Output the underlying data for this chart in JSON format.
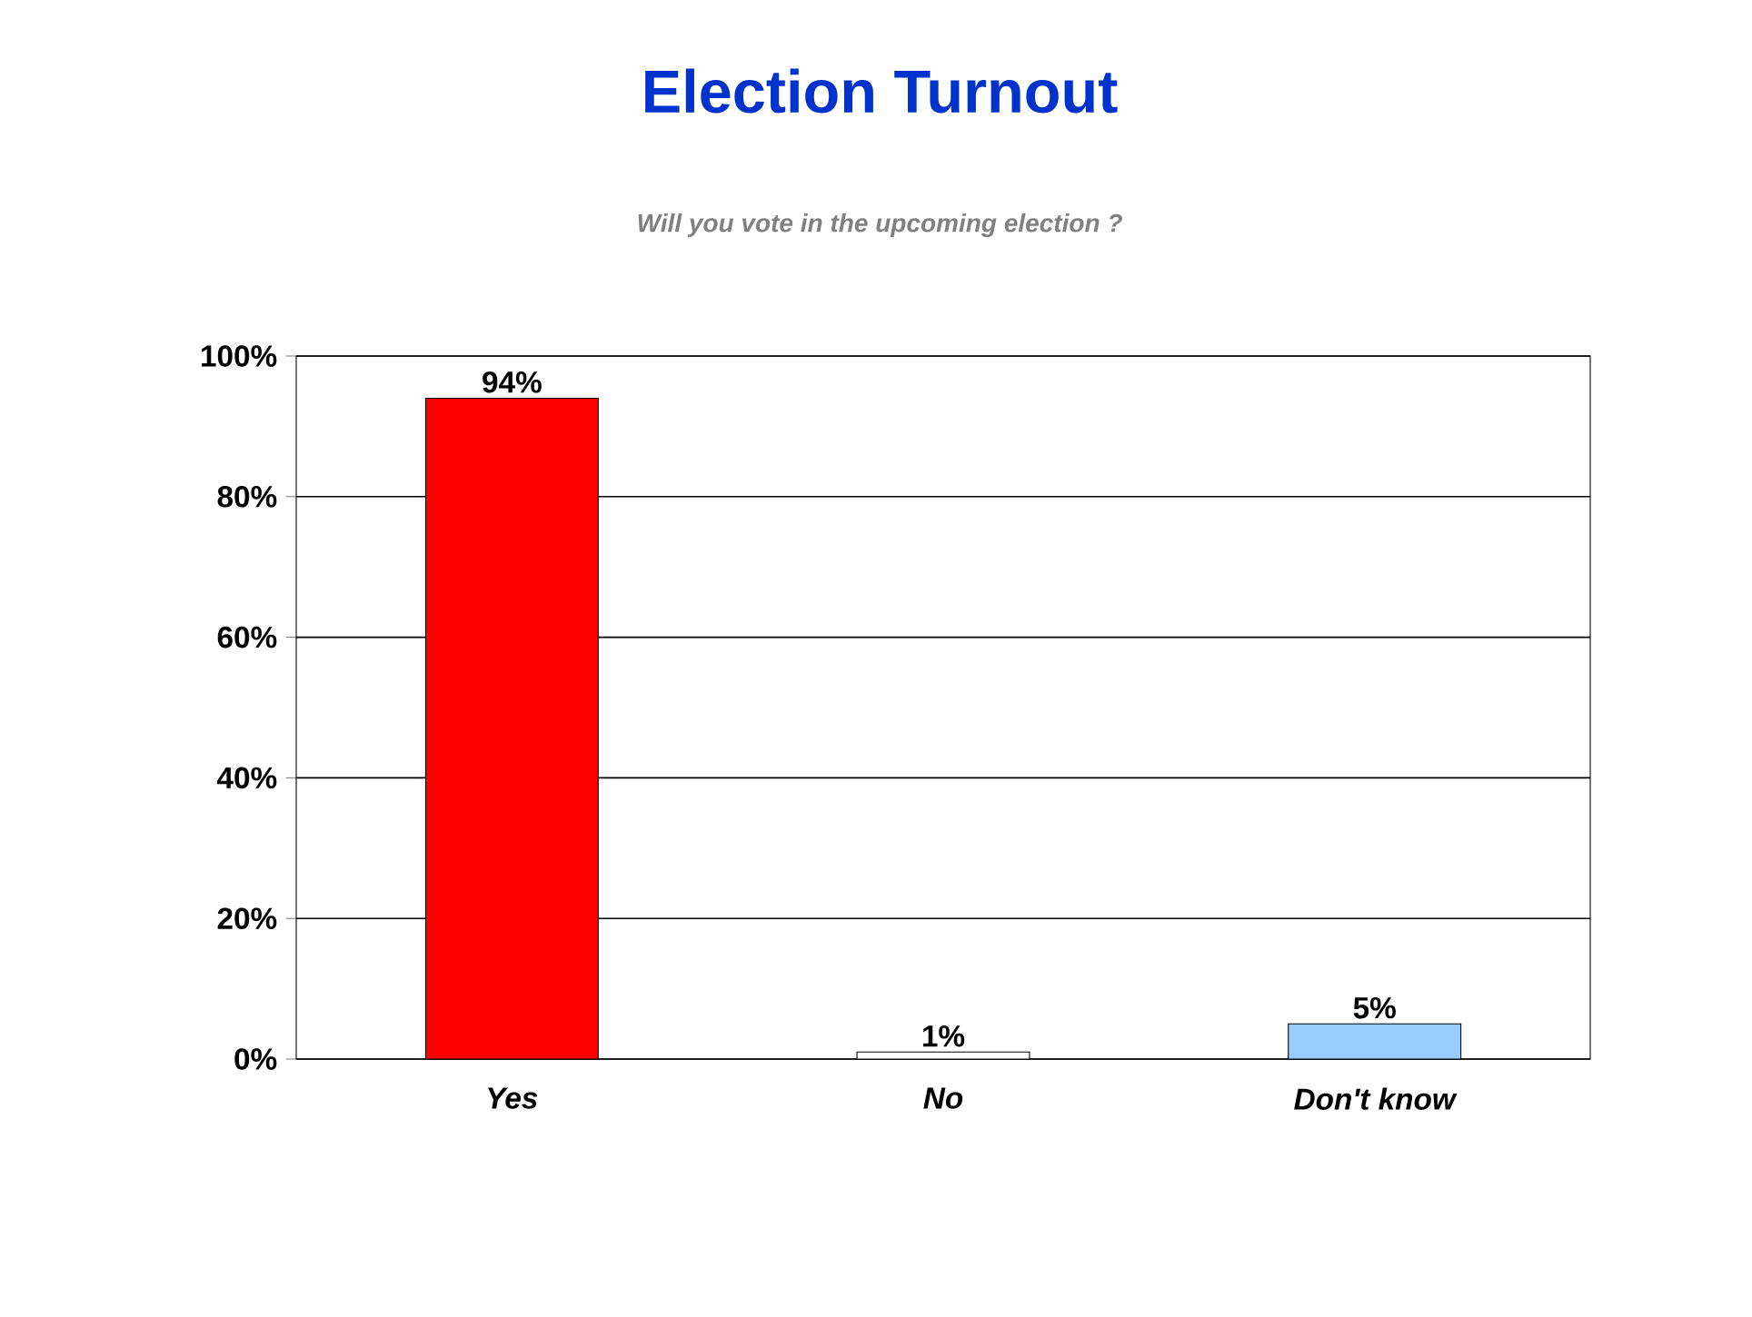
{
  "chart_data": {
    "type": "bar",
    "title": "Election Turnout",
    "subtitle": "Will you vote in the upcoming election ?",
    "categories": [
      "Yes",
      "No",
      "Don't know"
    ],
    "values": [
      94,
      1,
      5
    ],
    "colors": [
      "#ff0000",
      "#ffffff",
      "#99ccff"
    ],
    "value_labels": [
      "94%",
      "1%",
      "5%"
    ],
    "ylim": [
      0,
      100
    ],
    "yticks": [
      {
        "value": 0,
        "label": "0%"
      },
      {
        "value": 20,
        "label": "20%"
      },
      {
        "value": 40,
        "label": "40%"
      },
      {
        "value": 60,
        "label": "60%"
      },
      {
        "value": 80,
        "label": "80%"
      },
      {
        "value": 100,
        "label": "100%"
      }
    ],
    "grid": "y"
  }
}
